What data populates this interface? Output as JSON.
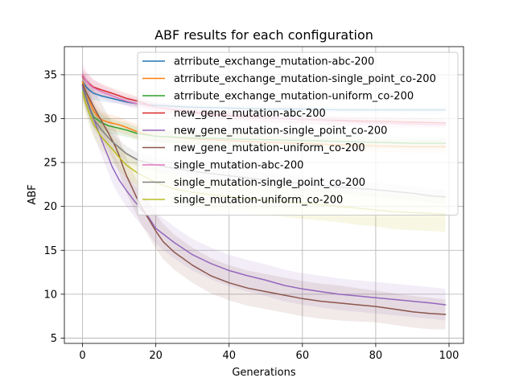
{
  "chart_data": {
    "type": "line",
    "title": "ABF results for each configuration",
    "xlabel": "Generations",
    "ylabel": "ABF",
    "xlim": [
      -4.95,
      103.95
    ],
    "ylim": [
      4.4,
      38.2
    ],
    "xticks": [
      0,
      20,
      40,
      60,
      80,
      100
    ],
    "yticks": [
      5,
      10,
      15,
      20,
      25,
      30,
      35
    ],
    "grid": true,
    "legend_position": "upper-right",
    "series": [
      {
        "name": "atrribute_exchange_mutation-abc-200",
        "color": "#1f77b4",
        "x": [
          0,
          1,
          2,
          3,
          5,
          8,
          10,
          12,
          15,
          20,
          30,
          40,
          50,
          60,
          70,
          80,
          90,
          99
        ],
        "y": [
          34.2,
          33.6,
          33.2,
          32.9,
          32.6,
          32.3,
          32.1,
          31.9,
          31.7,
          31.5,
          31.3,
          31.2,
          31.1,
          31.1,
          31.0,
          31.0,
          31.0,
          31.0
        ],
        "band": [
          1.0,
          1.0,
          1.0,
          0.8,
          0.6,
          0.5,
          0.4,
          0.4,
          0.4,
          0.3,
          0.3,
          0.3,
          0.3,
          0.3,
          0.3,
          0.3,
          0.3,
          0.3
        ]
      },
      {
        "name": "atrribute_exchange_mutation-single_point_co-200",
        "color": "#ff7f0e",
        "x": [
          0,
          1,
          2,
          3,
          4,
          5,
          7,
          10,
          12,
          15,
          20,
          30,
          40,
          50,
          60,
          70,
          80,
          90,
          99
        ],
        "y": [
          34.2,
          33.0,
          31.9,
          30.9,
          30.3,
          29.9,
          29.6,
          29.3,
          29.0,
          28.5,
          28.0,
          27.7,
          27.5,
          27.3,
          27.2,
          27.0,
          26.9,
          26.8,
          26.8
        ],
        "band": [
          1.2,
          1.3,
          1.3,
          1.2,
          1.1,
          1.0,
          0.9,
          0.9,
          0.8,
          0.8,
          0.8,
          0.7,
          0.7,
          0.7,
          0.7,
          0.7,
          0.7,
          0.7,
          0.7
        ]
      },
      {
        "name": "atrribute_exchange_mutation-uniform_co-200",
        "color": "#2ca02c",
        "x": [
          0,
          1,
          2,
          3,
          5,
          7,
          10,
          12,
          15,
          20,
          30,
          40,
          50,
          60,
          70,
          80,
          90,
          99
        ],
        "y": [
          33.8,
          32.5,
          31.2,
          30.2,
          29.6,
          29.2,
          28.9,
          28.7,
          28.3,
          28.0,
          27.8,
          27.7,
          27.6,
          27.5,
          27.4,
          27.3,
          27.2,
          27.2
        ],
        "band": [
          1.2,
          1.3,
          1.3,
          1.2,
          1.0,
          0.9,
          0.8,
          0.8,
          0.7,
          0.7,
          0.7,
          0.7,
          0.7,
          0.7,
          0.7,
          0.7,
          0.7,
          0.7
        ]
      },
      {
        "name": "new_gene_mutation-abc-200",
        "color": "#d62728",
        "x": [
          0,
          1,
          2,
          3,
          5,
          8,
          10,
          12,
          15,
          20,
          30,
          40,
          50,
          60,
          70,
          80,
          90,
          99
        ],
        "y": [
          34.8,
          34.3,
          33.9,
          33.6,
          33.3,
          32.9,
          32.6,
          32.3,
          32.0,
          31.3,
          30.7,
          30.3,
          30.1,
          29.9,
          29.8,
          29.7,
          29.6,
          29.5
        ],
        "band": [
          0.9,
          0.9,
          0.9,
          0.8,
          0.7,
          0.6,
          0.6,
          0.6,
          0.5,
          0.5,
          0.5,
          0.5,
          0.5,
          0.5,
          0.5,
          0.5,
          0.5,
          0.5
        ]
      },
      {
        "name": "new_gene_mutation-single_point_co-200",
        "color": "#9467bd",
        "x": [
          0,
          1,
          2,
          3,
          4,
          5,
          6,
          7,
          8,
          9,
          10,
          12,
          14,
          16,
          18,
          20,
          25,
          30,
          35,
          40,
          45,
          50,
          55,
          60,
          65,
          70,
          75,
          80,
          85,
          90,
          95,
          99
        ],
        "y": [
          33.7,
          32.4,
          31.2,
          30.0,
          28.9,
          27.8,
          26.7,
          25.7,
          24.6,
          23.8,
          23.0,
          21.8,
          20.7,
          19.7,
          18.8,
          17.5,
          15.9,
          14.5,
          13.5,
          12.7,
          12.1,
          11.6,
          11.0,
          10.6,
          10.3,
          10.0,
          9.8,
          9.6,
          9.4,
          9.2,
          9.0,
          8.8
        ],
        "band": [
          1.5,
          1.7,
          1.8,
          1.8,
          1.8,
          1.8,
          1.8,
          1.8,
          1.8,
          1.8,
          1.8,
          1.8,
          1.8,
          1.8,
          1.8,
          1.8,
          1.8,
          1.8,
          1.8,
          1.8,
          1.8,
          1.8,
          1.8,
          1.8,
          1.8,
          1.8,
          1.8,
          1.8,
          1.8,
          1.8,
          1.8,
          1.8
        ]
      },
      {
        "name": "new_gene_mutation-uniform_co-200",
        "color": "#8c564b",
        "x": [
          0,
          1,
          2,
          3,
          4,
          5,
          6,
          7,
          8,
          9,
          10,
          11,
          12,
          13,
          14,
          15,
          16,
          18,
          20,
          22,
          25,
          30,
          35,
          40,
          45,
          50,
          55,
          60,
          65,
          70,
          75,
          80,
          85,
          90,
          95,
          99
        ],
        "y": [
          33.9,
          33.0,
          32.2,
          31.4,
          30.6,
          29.9,
          29.1,
          28.4,
          27.6,
          26.8,
          25.8,
          24.6,
          23.5,
          22.6,
          21.7,
          20.8,
          20.0,
          18.6,
          17.2,
          16.0,
          14.8,
          13.3,
          12.1,
          11.3,
          10.7,
          10.3,
          9.9,
          9.5,
          9.2,
          9.0,
          8.8,
          8.6,
          8.3,
          8.0,
          7.8,
          7.7
        ],
        "band": [
          1.5,
          1.8,
          2.0,
          2.0,
          2.0,
          2.0,
          2.0,
          2.0,
          2.0,
          2.0,
          2.0,
          2.0,
          2.0,
          2.0,
          2.0,
          2.0,
          2.0,
          2.0,
          2.0,
          2.0,
          2.0,
          2.0,
          2.0,
          2.0,
          2.0,
          2.0,
          2.0,
          2.0,
          2.0,
          2.0,
          1.9,
          1.8,
          1.8,
          1.8,
          1.8,
          1.7
        ]
      },
      {
        "name": "single_mutation-abc-200",
        "color": "#e377c2",
        "x": [
          0,
          1,
          2,
          3,
          5,
          8,
          10,
          12,
          15,
          20,
          30,
          40,
          50,
          60,
          70,
          80,
          90,
          99
        ],
        "y": [
          35.0,
          34.3,
          33.8,
          33.5,
          33.1,
          32.6,
          32.3,
          32.0,
          31.7,
          31.3,
          30.8,
          30.4,
          30.1,
          29.9,
          29.7,
          29.5,
          29.4,
          29.3
        ],
        "band": [
          1.3,
          1.2,
          1.1,
          1.0,
          0.8,
          0.7,
          0.6,
          0.6,
          0.6,
          0.5,
          0.5,
          0.5,
          0.5,
          0.5,
          0.5,
          0.5,
          0.5,
          0.5
        ]
      },
      {
        "name": "single_mutation-single_point_co-200",
        "color": "#7f7f7f",
        "x": [
          0,
          1,
          2,
          3,
          5,
          8,
          10,
          12,
          15,
          20,
          30,
          40,
          50,
          60,
          70,
          80,
          90,
          95,
          99
        ],
        "y": [
          33.5,
          32.2,
          31.0,
          30.0,
          28.8,
          27.4,
          26.7,
          26.0,
          25.3,
          24.7,
          24.0,
          23.5,
          23.0,
          22.6,
          22.2,
          21.9,
          21.5,
          21.2,
          21.1
        ],
        "band": [
          1.2,
          1.2,
          1.2,
          1.2,
          1.1,
          1.0,
          0.9,
          0.9,
          0.8,
          0.8,
          0.8,
          0.8,
          0.8,
          0.8,
          0.8,
          0.8,
          0.8,
          0.8,
          0.8
        ]
      },
      {
        "name": "single_mutation-uniform_co-200",
        "color": "#bcbd22",
        "x": [
          0,
          1,
          2,
          3,
          5,
          8,
          10,
          12,
          15,
          20,
          25,
          30,
          40,
          50,
          60,
          70,
          75,
          80,
          85,
          90,
          95,
          99
        ],
        "y": [
          33.0,
          31.6,
          30.4,
          29.4,
          28.0,
          26.6,
          25.6,
          24.7,
          23.8,
          22.7,
          22.0,
          21.6,
          21.1,
          20.7,
          20.4,
          20.0,
          19.8,
          19.6,
          19.4,
          19.3,
          19.2,
          19.1
        ],
        "band": [
          1.5,
          1.5,
          1.5,
          1.5,
          1.5,
          1.5,
          1.5,
          1.5,
          1.5,
          1.6,
          1.6,
          1.7,
          1.7,
          1.7,
          1.8,
          1.8,
          1.9,
          1.9,
          2.0,
          2.0,
          2.0,
          2.0
        ]
      }
    ]
  }
}
